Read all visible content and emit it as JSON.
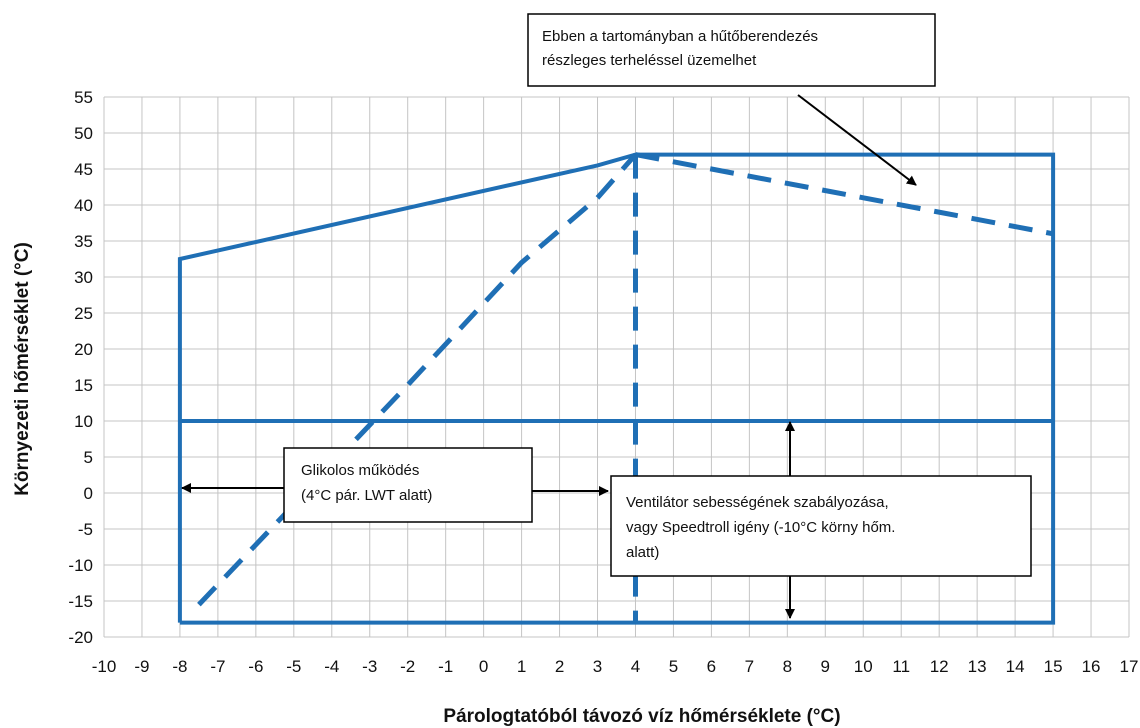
{
  "chart_data": {
    "type": "line",
    "xlabel": "Párologtatóból távozó víz hőmérséklete (°C)",
    "ylabel": "Környezeti hőmérséklet (°C)",
    "xlim": [
      -10,
      17
    ],
    "ylim": [
      -20,
      55
    ],
    "x_ticks": [
      -10,
      -9,
      -8,
      -7,
      -6,
      -5,
      -4,
      -3,
      -2,
      -1,
      0,
      1,
      2,
      3,
      4,
      5,
      6,
      7,
      8,
      9,
      10,
      11,
      12,
      13,
      14,
      15,
      16,
      17
    ],
    "y_ticks": [
      55,
      50,
      45,
      40,
      35,
      30,
      25,
      20,
      15,
      10,
      5,
      0,
      -5,
      -10,
      -15,
      -20
    ],
    "grid": true,
    "color": "#1f6fb5",
    "series": [
      {
        "style": "solid",
        "points": [
          [
            -8,
            -18
          ],
          [
            -8,
            32.5
          ],
          [
            3,
            45.5
          ],
          [
            4,
            47
          ],
          [
            15,
            47
          ],
          [
            15,
            -18
          ],
          [
            -8,
            -18
          ]
        ]
      },
      {
        "style": "solid",
        "points": [
          [
            -8,
            10
          ],
          [
            15,
            10
          ]
        ]
      },
      {
        "style": "dashed",
        "points": [
          [
            -7.5,
            -15.5
          ],
          [
            -2,
            15
          ],
          [
            1,
            32
          ],
          [
            3,
            41
          ],
          [
            4,
            47
          ]
        ]
      },
      {
        "style": "dashed",
        "points": [
          [
            4,
            47
          ],
          [
            4,
            -18
          ]
        ]
      },
      {
        "style": "dashed",
        "points": [
          [
            4,
            47
          ],
          [
            7,
            44
          ],
          [
            10,
            41
          ],
          [
            12.5,
            38.5
          ],
          [
            15,
            36
          ]
        ]
      }
    ],
    "annotations": [
      {
        "id": "partial-load-note",
        "lines": [
          "Ebben a tartományban a hűtőberendezés",
          "részleges terheléssel üzemelhet"
        ]
      },
      {
        "id": "glycol-note",
        "lines": [
          "Glikolos működés",
          "(4°C pár. LWT alatt)"
        ]
      },
      {
        "id": "fan-note",
        "lines": [
          "Ventilátor  sebességének  szabályozása,",
          "vagy Speedtroll igény (-10°C körny hőm.",
          "alatt)"
        ]
      }
    ]
  }
}
